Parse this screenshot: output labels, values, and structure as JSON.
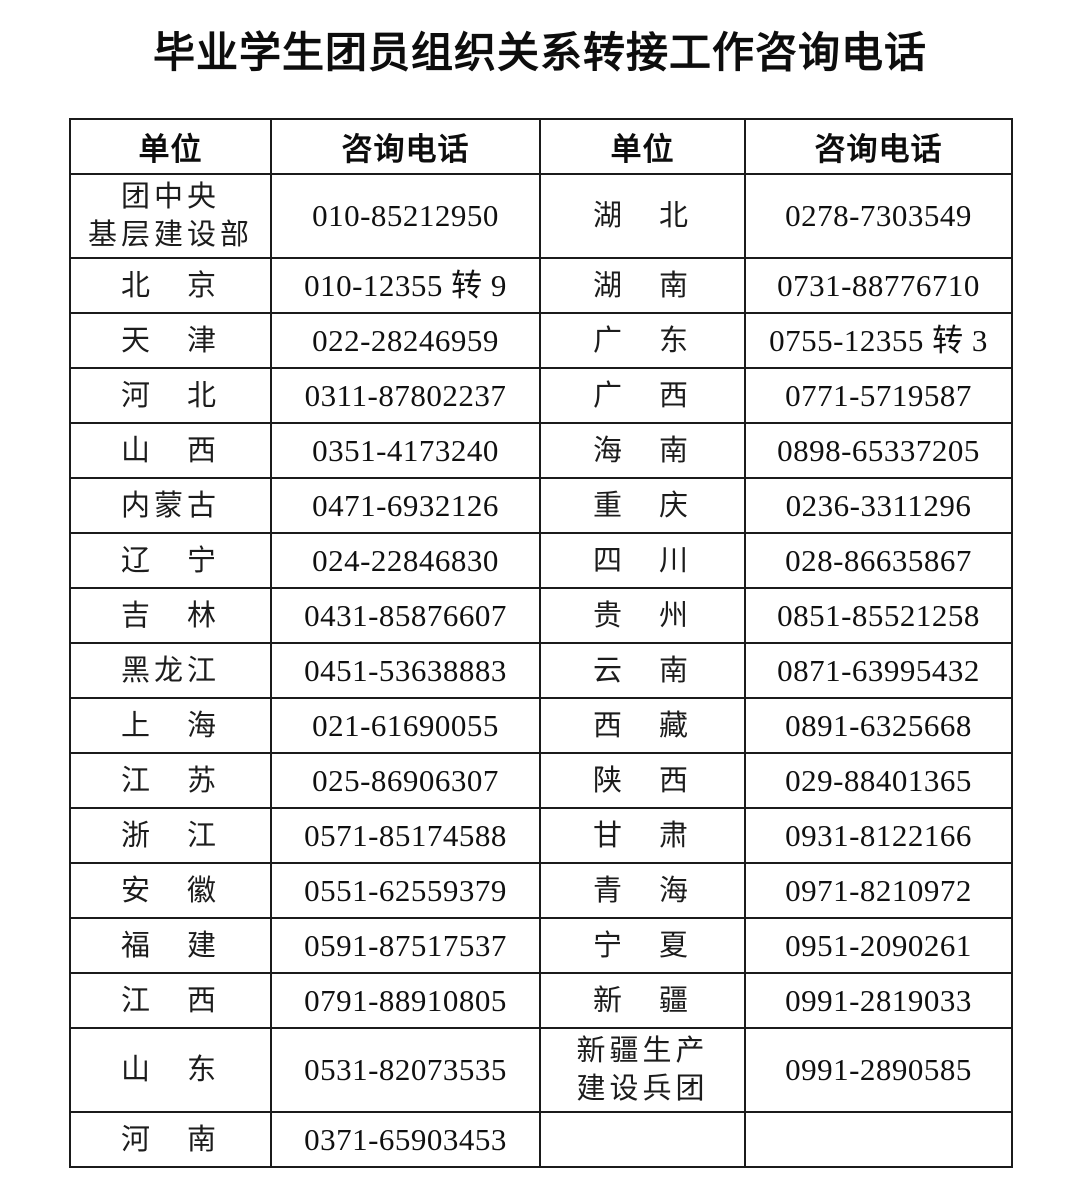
{
  "page": {
    "title": "毕业学生团员组织关系转接工作咨询电话"
  },
  "table": {
    "headers": [
      "单位",
      "咨询电话",
      "单位",
      "咨询电话"
    ],
    "rows": [
      {
        "unit_left": "团中央\n基层建设部",
        "phone_left": "010-85212950",
        "unit_right": "湖　北",
        "phone_right": "0278-7303549"
      },
      {
        "unit_left": "北　京",
        "phone_left": "010-12355 转 9",
        "unit_right": "湖　南",
        "phone_right": "0731-88776710"
      },
      {
        "unit_left": "天　津",
        "phone_left": "022-28246959",
        "unit_right": "广　东",
        "phone_right": "0755-12355 转 3"
      },
      {
        "unit_left": "河　北",
        "phone_left": "0311-87802237",
        "unit_right": "广　西",
        "phone_right": "0771-5719587"
      },
      {
        "unit_left": "山　西",
        "phone_left": "0351-4173240",
        "unit_right": "海　南",
        "phone_right": "0898-65337205"
      },
      {
        "unit_left": "内蒙古",
        "phone_left": "0471-6932126",
        "unit_right": "重　庆",
        "phone_right": "0236-3311296"
      },
      {
        "unit_left": "辽　宁",
        "phone_left": "024-22846830",
        "unit_right": "四　川",
        "phone_right": "028-86635867"
      },
      {
        "unit_left": "吉　林",
        "phone_left": "0431-85876607",
        "unit_right": "贵　州",
        "phone_right": "0851-85521258"
      },
      {
        "unit_left": "黑龙江",
        "phone_left": "0451-53638883",
        "unit_right": "云　南",
        "phone_right": "0871-63995432"
      },
      {
        "unit_left": "上　海",
        "phone_left": "021-61690055",
        "unit_right": "西　藏",
        "phone_right": "0891-6325668"
      },
      {
        "unit_left": "江　苏",
        "phone_left": "025-86906307",
        "unit_right": "陕　西",
        "phone_right": "029-88401365"
      },
      {
        "unit_left": "浙　江",
        "phone_left": "0571-85174588",
        "unit_right": "甘　肃",
        "phone_right": "0931-8122166"
      },
      {
        "unit_left": "安　徽",
        "phone_left": "0551-62559379",
        "unit_right": "青　海",
        "phone_right": "0971-8210972"
      },
      {
        "unit_left": "福　建",
        "phone_left": "0591-87517537",
        "unit_right": "宁　夏",
        "phone_right": "0951-2090261"
      },
      {
        "unit_left": "江　西",
        "phone_left": "0791-88910805",
        "unit_right": "新　疆",
        "phone_right": "0991-2819033"
      },
      {
        "unit_left": "山　东",
        "phone_left": "0531-82073535",
        "unit_right": "新疆生产\n建设兵团",
        "phone_right": "0991-2890585"
      },
      {
        "unit_left": "河　南",
        "phone_left": "0371-65903453",
        "unit_right": "",
        "phone_right": ""
      }
    ]
  }
}
